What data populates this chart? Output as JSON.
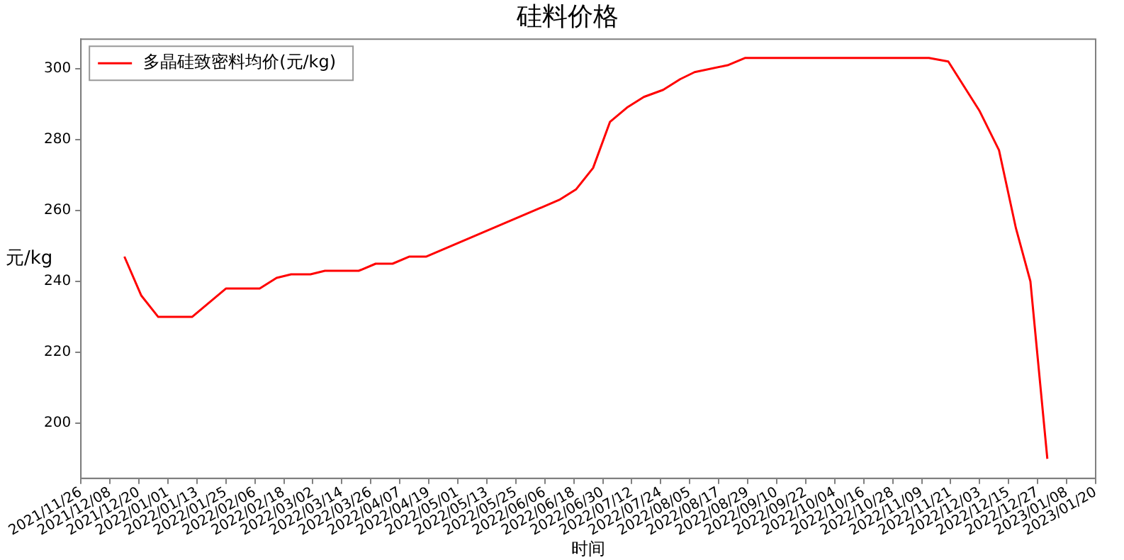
{
  "chart_data": {
    "type": "line",
    "title": "硅料价格",
    "xlabel": "时间",
    "ylabel": "元/kg",
    "legend": "top left",
    "grid": false,
    "marker": "none",
    "line_style": "solid",
    "xlim": [
      "2021-11-26",
      "2023-01-20"
    ],
    "ylim": [
      184.5,
      308.3
    ],
    "yticks": [
      200,
      220,
      240,
      260,
      280,
      300
    ],
    "xticks": [
      {
        "value": "2021-11-26",
        "label": "2021/11/26"
      },
      {
        "value": "2021-12-08",
        "label": "2021/12/08"
      },
      {
        "value": "2021-12-20",
        "label": "2021/12/20"
      },
      {
        "value": "2022-01-01",
        "label": "2022/01/01"
      },
      {
        "value": "2022-01-13",
        "label": "2022/01/13"
      },
      {
        "value": "2022-01-25",
        "label": "2022/01/25"
      },
      {
        "value": "2022-02-06",
        "label": "2022/02/06"
      },
      {
        "value": "2022-02-18",
        "label": "2022/02/18"
      },
      {
        "value": "2022-03-02",
        "label": "2022/03/02"
      },
      {
        "value": "2022-03-14",
        "label": "2022/03/14"
      },
      {
        "value": "2022-03-26",
        "label": "2022/03/26"
      },
      {
        "value": "2022-04-07",
        "label": "2022/04/07"
      },
      {
        "value": "2022-04-19",
        "label": "2022/04/19"
      },
      {
        "value": "2022-05-01",
        "label": "2022/05/01"
      },
      {
        "value": "2022-05-13",
        "label": "2022/05/13"
      },
      {
        "value": "2022-05-25",
        "label": "2022/05/25"
      },
      {
        "value": "2022-06-06",
        "label": "2022/06/06"
      },
      {
        "value": "2022-06-18",
        "label": "2022/06/18"
      },
      {
        "value": "2022-06-30",
        "label": "2022/06/30"
      },
      {
        "value": "2022-07-12",
        "label": "2022/07/12"
      },
      {
        "value": "2022-07-24",
        "label": "2022/07/24"
      },
      {
        "value": "2022-08-05",
        "label": "2022/08/05"
      },
      {
        "value": "2022-08-17",
        "label": "2022/08/17"
      },
      {
        "value": "2022-08-29",
        "label": "2022/08/29"
      },
      {
        "value": "2022-09-10",
        "label": "2022/09/10"
      },
      {
        "value": "2022-09-22",
        "label": "2022/09/22"
      },
      {
        "value": "2022-10-04",
        "label": "2022/10/04"
      },
      {
        "value": "2022-10-16",
        "label": "2022/10/16"
      },
      {
        "value": "2022-10-28",
        "label": "2022/10/28"
      },
      {
        "value": "2022-11-09",
        "label": "2022/11/09"
      },
      {
        "value": "2022-11-21",
        "label": "2022/11/21"
      },
      {
        "value": "2022-12-03",
        "label": "2022/12/03"
      },
      {
        "value": "2022-12-15",
        "label": "2022/12/15"
      },
      {
        "value": "2022-12-27",
        "label": "2022/12/27"
      },
      {
        "value": "2023-01-08",
        "label": "2023/01/08"
      },
      {
        "value": "2023-01-20",
        "label": "2023/01/20"
      }
    ],
    "x": [
      "2021-12-14",
      "2021-12-21",
      "2021-12-28",
      "2022-01-11",
      "2022-01-25",
      "2022-02-08",
      "2022-02-15",
      "2022-02-21",
      "2022-03-01",
      "2022-03-07",
      "2022-03-21",
      "2022-03-28",
      "2022-04-04",
      "2022-04-11",
      "2022-04-18",
      "2022-06-12",
      "2022-06-19",
      "2022-06-26",
      "2022-07-03",
      "2022-07-10",
      "2022-07-17",
      "2022-07-25",
      "2022-08-01",
      "2022-08-07",
      "2022-08-21",
      "2022-08-28",
      "2022-11-12",
      "2022-11-20",
      "2022-12-03",
      "2022-12-11",
      "2022-12-18",
      "2022-12-24",
      "2022-12-31"
    ],
    "series": [
      {
        "name": "多晶硅致密料均价(元/kg)",
        "color": "#ff0000",
        "values": [
          247,
          236,
          230,
          230,
          238,
          238,
          241,
          242,
          242,
          243,
          243,
          245,
          245,
          247,
          247,
          263,
          266,
          272,
          285,
          289,
          292,
          294,
          297,
          299,
          301,
          303,
          303,
          302,
          288,
          277,
          255,
          240,
          190
        ]
      }
    ]
  }
}
